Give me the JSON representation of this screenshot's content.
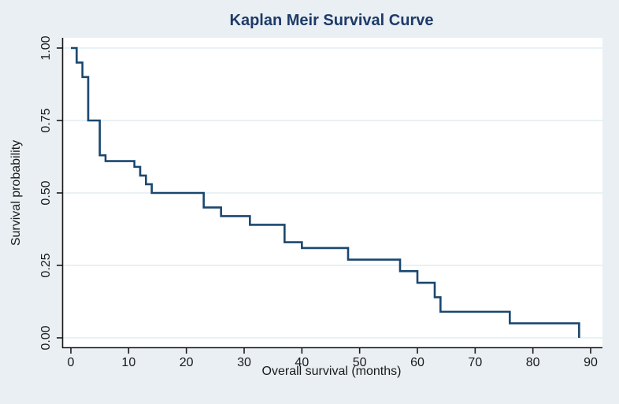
{
  "chart": {
    "title": "Kaplan Meir Survival Curve",
    "xlabel": "Overall survival (months)",
    "ylabel": "Survival probability"
  },
  "chart_data": {
    "type": "line",
    "subtype": "kaplan-meier-step-function",
    "title": "Kaplan Meir Survival Curve",
    "xlabel": "Overall survival (months)",
    "ylabel": "Survival probability",
    "xlim": [
      0,
      90
    ],
    "ylim": [
      0.0,
      1.0
    ],
    "x_ticks": [
      0,
      10,
      20,
      30,
      40,
      50,
      60,
      70,
      80,
      90
    ],
    "y_ticks": [
      {
        "value": 0.0,
        "label": "0.00"
      },
      {
        "value": 0.25,
        "label": "0.25"
      },
      {
        "value": 0.5,
        "label": "0.50"
      },
      {
        "value": 0.75,
        "label": "0.75"
      },
      {
        "value": 1.0,
        "label": "1.00"
      }
    ],
    "grid": true,
    "legend": false,
    "series": [
      {
        "name": "Overall survival",
        "step": "post",
        "color": "#1a476f",
        "x": [
          0,
          1,
          2,
          3,
          5,
          6,
          11,
          12,
          13,
          14,
          23,
          26,
          31,
          37,
          40,
          48,
          57,
          60,
          63,
          64,
          76,
          88
        ],
        "y": [
          1.0,
          0.95,
          0.9,
          0.75,
          0.63,
          0.61,
          0.59,
          0.56,
          0.53,
          0.5,
          0.45,
          0.42,
          0.39,
          0.33,
          0.31,
          0.27,
          0.23,
          0.19,
          0.14,
          0.09,
          0.05,
          0.0
        ]
      }
    ]
  },
  "colors": {
    "figure_background": "#e9eff2",
    "plot_background": "#ffffff",
    "gridline": "#e2eef1",
    "axis_line": "#1a1a1a",
    "tick_text": "#1a1a1a",
    "title_text": "#1e3a68",
    "curve": "#1a476f"
  }
}
